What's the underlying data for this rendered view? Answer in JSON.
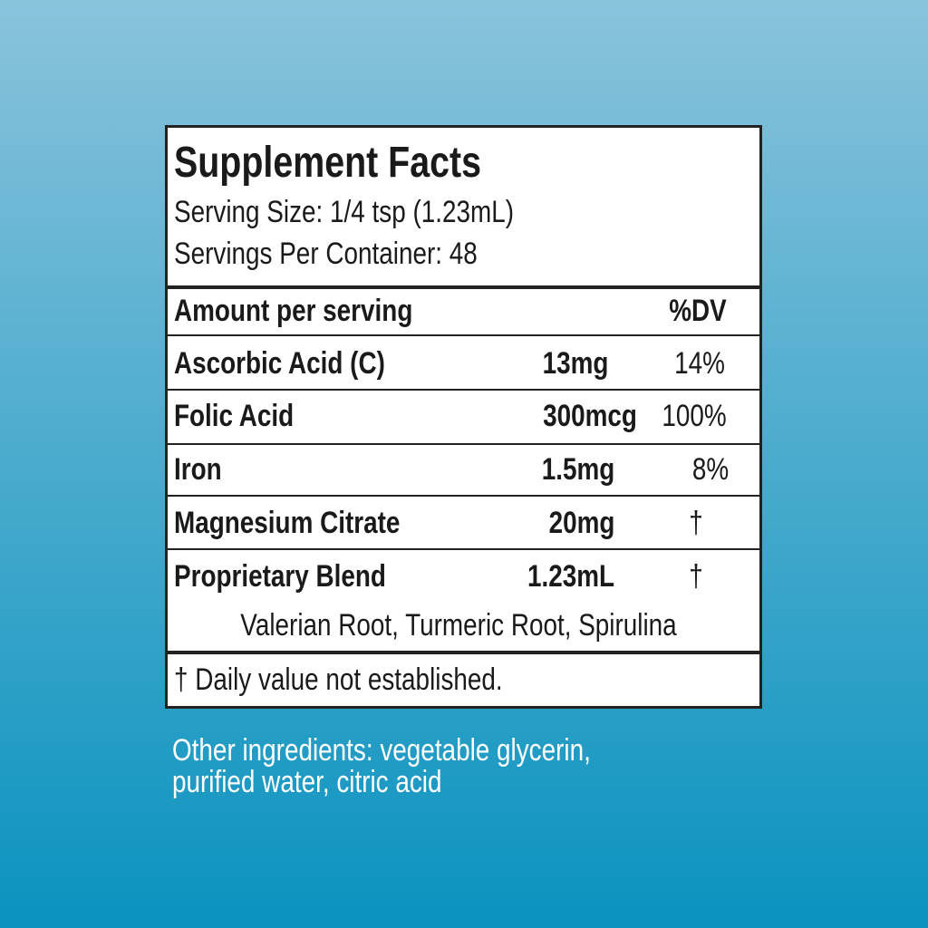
{
  "header": {
    "title": "Supplement Facts",
    "serving_size": "Serving Size: 1/4 tsp (1.23mL)",
    "servings_per_container": "Servings Per Container: 48"
  },
  "table": {
    "header": [
      "Amount per serving",
      "%DV"
    ],
    "rows": [
      [
        "Ascorbic Acid (C)",
        "13mg",
        "14%"
      ],
      [
        "Folic Acid",
        "300mcg",
        "100%"
      ],
      [
        "Iron",
        "1.5mg",
        "8%"
      ],
      [
        "Magnesium Citrate",
        "20mg",
        "†"
      ],
      [
        "Proprietary Blend",
        "1.23mL",
        "†"
      ]
    ],
    "blend_ingredients": "Valerian Root, Turmeric Root, Spirulina"
  },
  "footnote": "† Daily value not established.",
  "other_ingredients": [
    "Other ingredients: vegetable glycerin,",
    "purified water, citric acid"
  ]
}
